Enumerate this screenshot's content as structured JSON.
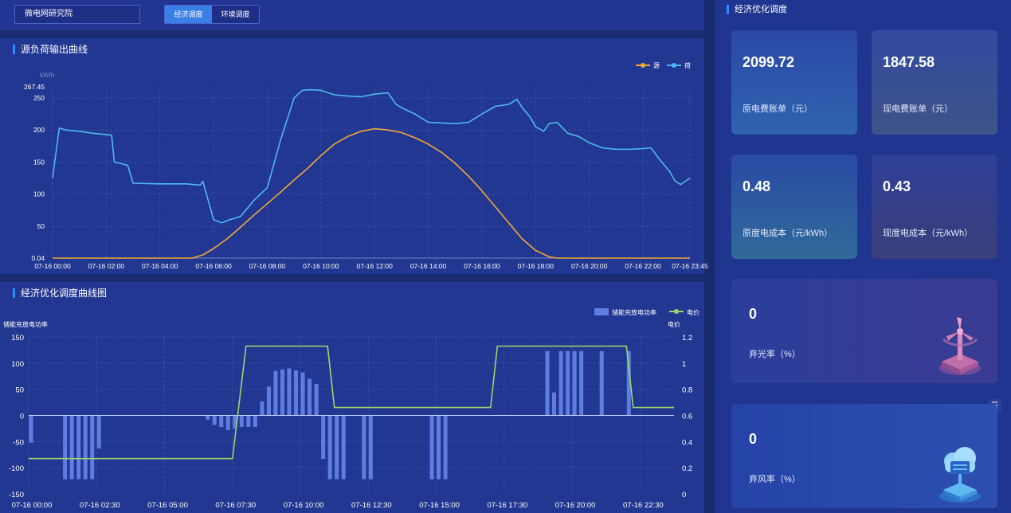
{
  "header": {
    "site": "微电网研究院",
    "tabs": [
      {
        "label": "经济调度",
        "active": true
      },
      {
        "label": "环境调度",
        "active": false
      }
    ]
  },
  "chart_top": {
    "title": "源负荷输出曲线",
    "unit": "kW/h",
    "legend": [
      "源",
      "荷"
    ]
  },
  "chart_bottom": {
    "title": "经济优化调度曲线图",
    "y_left_label": "储能充放电功率",
    "y_right_label": "电价",
    "legend": [
      "储能充放电功率",
      "电价"
    ]
  },
  "right": {
    "title": "经济优化调度",
    "cards": [
      {
        "value": "2099.72",
        "label": "原电费账单（元）"
      },
      {
        "value": "1847.58",
        "label": "现电费账单（元）"
      },
      {
        "value": "0.48",
        "label": "原度电成本（元/kWh）"
      },
      {
        "value": "0.43",
        "label": "现度电成本（元/kWh）"
      },
      {
        "value": "0",
        "label": "弃光率（%）"
      },
      {
        "value": "0",
        "label": "弃风率（%）"
      }
    ]
  },
  "colors": {
    "source": "#f0a73a",
    "load": "#4fb7f2",
    "bar": "#5f7ee0",
    "price": "#9ad66b",
    "accent": "#2f8cff"
  },
  "chart_data": [
    {
      "type": "line",
      "title": "源负荷输出曲线",
      "ylabel": "kW/h",
      "ylim": [
        0.04,
        267.45
      ],
      "yticks": [
        "0.04",
        "50",
        "100",
        "150",
        "200",
        "250",
        "267.45"
      ],
      "x_ticks": [
        "07-16 00:00",
        "07-16 02:00",
        "07-16 04:00",
        "07-16 06:00",
        "07-16 08:00",
        "07-16 10:00",
        "07-16 12:00",
        "07-16 14:00",
        "07-16 16:00",
        "07-16 18:00",
        "07-16 20:00",
        "07-16 22:00",
        "07-16 23:45"
      ],
      "series": [
        {
          "name": "源",
          "x_hours": [
            0,
            5.2,
            5.6,
            6,
            6.5,
            7,
            7.5,
            8,
            8.5,
            9,
            9.5,
            10,
            10.5,
            11,
            11.5,
            12,
            12.5,
            13,
            13.5,
            14,
            14.5,
            15,
            15.5,
            16,
            16.5,
            17,
            17.5,
            18,
            18.5,
            18.8,
            23.75
          ],
          "values": [
            0.04,
            0.04,
            5,
            15,
            30,
            48,
            67,
            85,
            103,
            122,
            140,
            160,
            178,
            190,
            198,
            202,
            200,
            196,
            188,
            178,
            165,
            148,
            128,
            105,
            80,
            55,
            30,
            12,
            2,
            0.04,
            0.04
          ]
        },
        {
          "name": "荷",
          "x_hours": [
            0,
            0.25,
            0.5,
            1,
            1.5,
            2,
            2.2,
            2.3,
            2.5,
            2.8,
            3,
            4,
            5,
            5.5,
            5.6,
            6,
            6.3,
            6.6,
            7,
            7.5,
            8,
            8.5,
            9,
            9.3,
            9.6,
            10,
            10.5,
            11,
            11.5,
            12,
            12.5,
            12.8,
            13,
            13.5,
            14,
            15,
            15.5,
            16,
            16.5,
            17,
            17.3,
            17.5,
            17.8,
            18,
            18.3,
            18.5,
            18.8,
            19.2,
            19.6,
            20,
            20.5,
            21,
            21.5,
            22,
            22.3,
            22.6,
            23,
            23.2,
            23.4,
            23.75
          ],
          "values": [
            125,
            203,
            200,
            198,
            195,
            193,
            192,
            150,
            148,
            145,
            117,
            116,
            116,
            114,
            120,
            60,
            55,
            60,
            65,
            90,
            110,
            185,
            250,
            262,
            263,
            262,
            255,
            253,
            252,
            256,
            258,
            240,
            235,
            225,
            212,
            210,
            212,
            225,
            237,
            240,
            248,
            235,
            220,
            205,
            198,
            210,
            212,
            195,
            190,
            180,
            172,
            170,
            170,
            171,
            172,
            155,
            135,
            120,
            115,
            125
          ]
        }
      ]
    },
    {
      "type": "bar",
      "title": "经济优化调度曲线图",
      "ylabel": "储能充放电功率",
      "y2label": "电价",
      "ylim": [
        -150,
        150
      ],
      "y2lim": [
        0,
        1.2
      ],
      "x_ticks": [
        "07-16 00:00",
        "07-16 02:30",
        "07-16 05:00",
        "07-16 07:30",
        "07-16 10:00",
        "07-16 12:30",
        "07-16 15:00",
        "07-16 17:30",
        "07-16 20:00",
        "07-16 22:30"
      ],
      "series": [
        {
          "name": "储能充放电功率",
          "type": "bar",
          "x_hours": [
            0,
            1.25,
            1.5,
            1.75,
            2,
            2.25,
            2.5,
            6.5,
            6.75,
            7,
            7.25,
            7.5,
            7.75,
            8,
            8.25,
            8.5,
            8.75,
            9,
            9.25,
            9.5,
            9.75,
            10,
            10.25,
            10.5,
            10.75,
            11,
            11.25,
            11.5,
            12.25,
            12.5,
            14.75,
            15,
            15.25,
            19,
            19.25,
            19.5,
            19.75,
            20,
            20.25,
            21,
            22
          ],
          "values": [
            -52,
            -122,
            -122,
            -122,
            -122,
            -122,
            -63,
            -8,
            -18,
            -22,
            -28,
            -25,
            -22,
            -22,
            -22,
            27,
            55,
            85,
            88,
            90,
            86,
            82,
            70,
            60,
            -83,
            -122,
            -122,
            -122,
            -122,
            -122,
            -122,
            -122,
            -122,
            123,
            44,
            123,
            123,
            123,
            123,
            123,
            123
          ]
        },
        {
          "name": "电价",
          "type": "line",
          "x_hours": [
            0,
            7.5,
            8.0,
            11.0,
            11.25,
            17.0,
            17.25,
            22.0,
            22.25,
            23.75
          ],
          "values": [
            0.27,
            0.27,
            1.13,
            1.13,
            0.66,
            0.66,
            1.13,
            1.13,
            0.66,
            0.66
          ]
        }
      ]
    }
  ]
}
